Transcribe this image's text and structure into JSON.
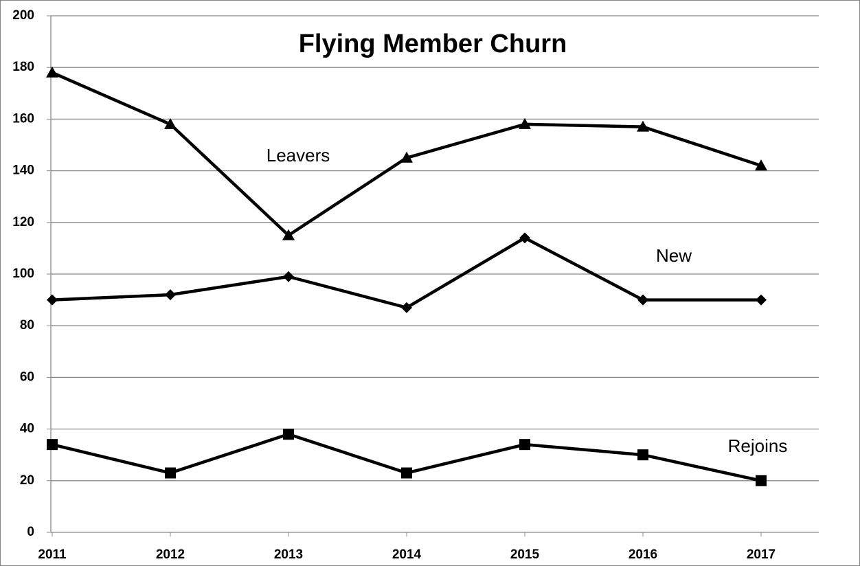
{
  "chart_data": {
    "type": "line",
    "title": "Flying Member Churn",
    "categories": [
      "2011",
      "2012",
      "2013",
      "2014",
      "2015",
      "2016",
      "2017"
    ],
    "series": [
      {
        "name": "Leavers",
        "color": "#000000",
        "marker": "triangle",
        "values": [
          178,
          158,
          115,
          145,
          158,
          157,
          142
        ]
      },
      {
        "name": "New",
        "color": "#000000",
        "marker": "diamond",
        "values": [
          90,
          92,
          99,
          87,
          114,
          90,
          90
        ]
      },
      {
        "name": "Rejoins",
        "color": "#000000",
        "marker": "square",
        "values": [
          34,
          23,
          38,
          23,
          34,
          30,
          20
        ]
      }
    ],
    "ylim": [
      0,
      200
    ],
    "yticks": [
      0,
      20,
      40,
      60,
      80,
      100,
      120,
      140,
      160,
      180,
      200
    ],
    "grid": true
  }
}
